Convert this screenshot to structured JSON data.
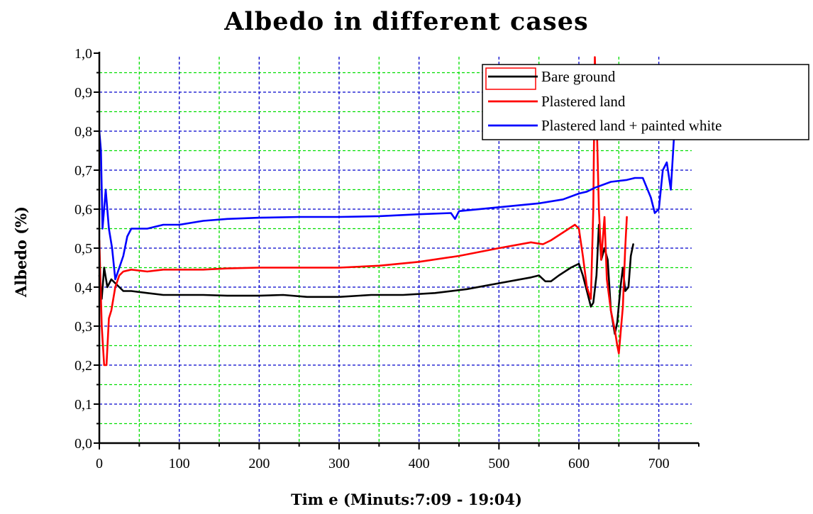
{
  "chart_data": {
    "type": "line",
    "title": "Albedo in different cases",
    "xlabel": "Tim e (Minuts:7:09 - 19:04)",
    "ylabel": "Albedo (%)",
    "xlim": [
      0,
      750
    ],
    "ylim": [
      0,
      1.0
    ],
    "x_ticks": [
      0,
      100,
      200,
      300,
      400,
      500,
      600,
      700
    ],
    "x_tick_labels": [
      "0",
      "100",
      "200",
      "300",
      "400",
      "500",
      "600",
      "700"
    ],
    "y_ticks": [
      0,
      0.1,
      0.2,
      0.3,
      0.4,
      0.5,
      0.6,
      0.7,
      0.8,
      0.9,
      1.0
    ],
    "y_tick_labels": [
      "0,0",
      "0,1",
      "0,2",
      "0,3",
      "0,4",
      "0,5",
      "0,6",
      "0,7",
      "0,8",
      "0,9",
      "1,0"
    ],
    "grid": {
      "major": true,
      "minor": true,
      "major_color": "#0000cc",
      "minor_color": "#00dd00",
      "style": "dashed"
    },
    "legend": {
      "position": "top-right",
      "entries": [
        "Bare ground",
        "Plastered land",
        "Plastered land + painted white"
      ]
    },
    "series": [
      {
        "name": "Bare ground",
        "color": "#000000",
        "x": [
          0,
          3,
          6,
          10,
          15,
          20,
          25,
          30,
          40,
          60,
          80,
          100,
          130,
          160,
          200,
          230,
          260,
          280,
          300,
          340,
          380,
          420,
          460,
          500,
          540,
          550,
          558,
          565,
          575,
          590,
          600,
          605,
          610,
          615,
          618,
          622,
          625,
          628,
          632,
          636,
          640,
          645,
          648,
          652,
          655,
          658,
          662,
          665,
          668
        ],
        "y": [
          0.43,
          0.37,
          0.45,
          0.4,
          0.42,
          0.41,
          0.4,
          0.39,
          0.39,
          0.385,
          0.38,
          0.38,
          0.38,
          0.378,
          0.378,
          0.38,
          0.375,
          0.375,
          0.375,
          0.38,
          0.38,
          0.385,
          0.395,
          0.41,
          0.425,
          0.43,
          0.415,
          0.415,
          0.43,
          0.45,
          0.46,
          0.43,
          0.39,
          0.35,
          0.36,
          0.43,
          0.56,
          0.47,
          0.5,
          0.47,
          0.34,
          0.28,
          0.31,
          0.4,
          0.45,
          0.39,
          0.4,
          0.48,
          0.51
        ]
      },
      {
        "name": "Plastered land",
        "color": "#ff0000",
        "x": [
          0,
          3,
          6,
          9,
          12,
          15,
          20,
          25,
          30,
          40,
          60,
          80,
          100,
          130,
          160,
          200,
          250,
          300,
          350,
          400,
          450,
          500,
          540,
          555,
          565,
          580,
          595,
          600,
          605,
          610,
          615,
          618,
          620,
          622,
          625,
          628,
          632,
          635,
          640,
          645,
          648,
          650,
          655,
          658,
          660
        ],
        "y": [
          0.52,
          0.3,
          0.2,
          0.2,
          0.32,
          0.34,
          0.4,
          0.43,
          0.44,
          0.445,
          0.44,
          0.445,
          0.445,
          0.445,
          0.448,
          0.45,
          0.45,
          0.45,
          0.455,
          0.465,
          0.48,
          0.5,
          0.515,
          0.51,
          0.52,
          0.54,
          0.56,
          0.55,
          0.48,
          0.4,
          0.37,
          0.6,
          0.99,
          0.85,
          0.6,
          0.47,
          0.58,
          0.42,
          0.34,
          0.29,
          0.25,
          0.23,
          0.35,
          0.5,
          0.58
        ]
      },
      {
        "name": "Plastered land + painted white",
        "color": "#0000ff",
        "x": [
          0,
          2,
          4,
          8,
          12,
          16,
          20,
          25,
          30,
          35,
          40,
          60,
          80,
          100,
          130,
          160,
          200,
          250,
          300,
          350,
          400,
          440,
          445,
          450,
          500,
          550,
          580,
          600,
          610,
          620,
          640,
          660,
          670,
          680,
          690,
          695,
          700,
          705,
          710,
          715,
          720
        ],
        "y": [
          0.8,
          0.75,
          0.55,
          0.65,
          0.55,
          0.5,
          0.42,
          0.45,
          0.48,
          0.53,
          0.55,
          0.55,
          0.56,
          0.56,
          0.57,
          0.575,
          0.578,
          0.58,
          0.58,
          0.582,
          0.587,
          0.59,
          0.575,
          0.595,
          0.605,
          0.615,
          0.625,
          0.64,
          0.645,
          0.655,
          0.67,
          0.675,
          0.68,
          0.68,
          0.63,
          0.59,
          0.6,
          0.7,
          0.72,
          0.65,
          0.82
        ]
      }
    ]
  }
}
